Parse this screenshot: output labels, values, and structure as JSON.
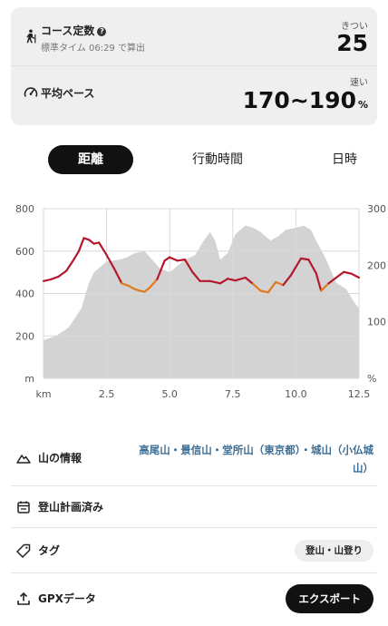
{
  "summary": {
    "course": {
      "title": "コース定数",
      "help_icon": "?",
      "subtitle": "標準タイム 06:29 で算出",
      "difficulty_label": "きつい",
      "value": "25"
    },
    "pace": {
      "title": "平均ペース",
      "speed_label": "速い",
      "value": "170~190",
      "unit": "%"
    }
  },
  "tabs": [
    {
      "label": "距離",
      "active": true
    },
    {
      "label": "行動時間",
      "active": false
    },
    {
      "label": "日時",
      "active": false
    }
  ],
  "chart_data": {
    "type": "area",
    "x_unit_label": "km",
    "y_left_unit_label": "m",
    "y_right_unit_label": "%",
    "x_ticks": [
      "2.5",
      "5.0",
      "7.5",
      "10.0",
      "12.5"
    ],
    "y_left_ticks": [
      "800",
      "600",
      "400",
      "200"
    ],
    "y_right_ticks": [
      "300",
      "200",
      "100"
    ],
    "xlim": [
      0,
      12.5
    ],
    "ylim_left": [
      0,
      800
    ],
    "ylim_right": [
      0,
      300
    ],
    "grid": true,
    "series": [
      {
        "axis": "left",
        "color": "#d3d3d3",
        "x": [
          0,
          0.5,
          1.0,
          1.5,
          1.8,
          2.0,
          2.5,
          3.0,
          3.3,
          3.6,
          4.0,
          4.3,
          4.6,
          5.0,
          5.3,
          5.6,
          6.0,
          6.3,
          6.6,
          6.8,
          7.0,
          7.3,
          7.6,
          8.0,
          8.3,
          8.6,
          9.0,
          9.3,
          9.6,
          10.0,
          10.3,
          10.6,
          10.8,
          11.2,
          11.6,
          12.0,
          12.3,
          12.5
        ],
        "values": [
          180,
          200,
          240,
          330,
          450,
          500,
          550,
          560,
          570,
          590,
          600,
          560,
          520,
          500,
          530,
          560,
          580,
          640,
          690,
          650,
          560,
          590,
          680,
          720,
          710,
          690,
          650,
          670,
          700,
          710,
          720,
          700,
          650,
          560,
          450,
          420,
          360,
          330
        ]
      },
      {
        "axis": "right",
        "color": "#b5182a",
        "low_color": "#e07a1f",
        "x": [
          0,
          0.3,
          0.6,
          0.9,
          1.2,
          1.4,
          1.6,
          1.8,
          2.0,
          2.2,
          2.5,
          2.8,
          3.1,
          3.4,
          3.6,
          3.8,
          4.0,
          4.2,
          4.5,
          4.8,
          5.0,
          5.3,
          5.6,
          5.9,
          6.2,
          6.6,
          7.0,
          7.3,
          7.6,
          8.0,
          8.3,
          8.6,
          8.9,
          9.2,
          9.5,
          9.8,
          10.2,
          10.5,
          10.8,
          11.0,
          11.3,
          11.6,
          11.9,
          12.2,
          12.5
        ],
        "values": [
          172,
          175,
          180,
          190,
          210,
          225,
          248,
          245,
          238,
          240,
          218,
          194,
          168,
          163,
          158,
          155,
          153,
          160,
          175,
          208,
          214,
          208,
          210,
          188,
          172,
          172,
          168,
          176,
          173,
          178,
          167,
          155,
          152,
          170,
          165,
          182,
          212,
          210,
          186,
          155,
          168,
          178,
          188,
          185,
          178
        ],
        "threshold": 170
      }
    ]
  },
  "info": {
    "mountains": {
      "label": "山の情報",
      "items": [
        "高尾山",
        "景信山",
        "堂所山（東京都）",
        "城山（小仏城山）"
      ],
      "separator": "・"
    },
    "plan": {
      "label": "登山計画済み"
    },
    "tags": {
      "label": "タグ",
      "chip": "登山・山登り"
    },
    "gpx": {
      "label": "GPXデータ",
      "button": "エクスポート"
    }
  }
}
